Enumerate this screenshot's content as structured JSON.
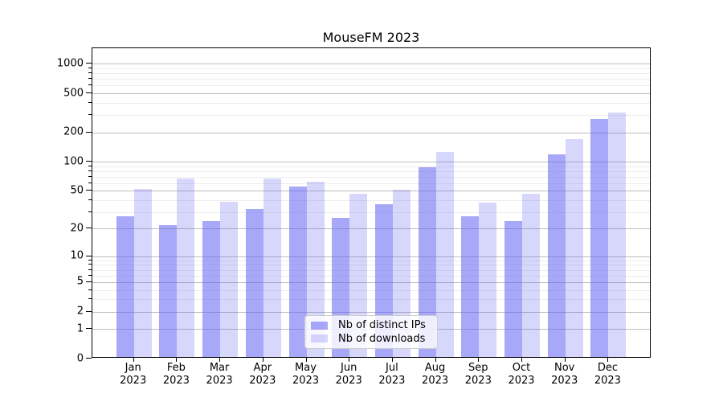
{
  "chart_data": {
    "type": "bar",
    "title": "MouseFM 2023",
    "x_year": "2023",
    "categories": [
      "Jan",
      "Feb",
      "Mar",
      "Apr",
      "May",
      "Jun",
      "Jul",
      "Aug",
      "Sep",
      "Oct",
      "Nov",
      "Dec"
    ],
    "series": [
      {
        "name": "Nb of distinct IPs",
        "color": "rgba(97,97,242,0.55)",
        "values": [
          26,
          21,
          23,
          31,
          53,
          25,
          35,
          85,
          26,
          23,
          115,
          262
        ]
      },
      {
        "name": "Nb of downloads",
        "color": "rgba(97,97,242,0.25)",
        "values": [
          50,
          65,
          37,
          65,
          60,
          45,
          49,
          122,
          36,
          45,
          165,
          308
        ]
      }
    ],
    "yscale": "log1p",
    "yticks": [
      0,
      1,
      2,
      5,
      10,
      20,
      50,
      100,
      200,
      500,
      1000
    ],
    "y_minor_gridlines": [
      3,
      4,
      6,
      7,
      8,
      9,
      30,
      40,
      60,
      70,
      80,
      90,
      300,
      400,
      600,
      700,
      800,
      900
    ],
    "ylim": [
      0,
      1440
    ],
    "xlabel": "",
    "ylabel": "",
    "grid": "horizontal",
    "legend_position": "lower-center-inside"
  },
  "colors": {
    "background": "#ffffff",
    "axis": "#000000",
    "grid_major": "#bdbdbd",
    "grid_minor": "#ededed",
    "bar_dark_rendered": "#a8a8f8",
    "bar_light_rendered": "#d8d8f8",
    "legend_border": "#cccccc"
  }
}
